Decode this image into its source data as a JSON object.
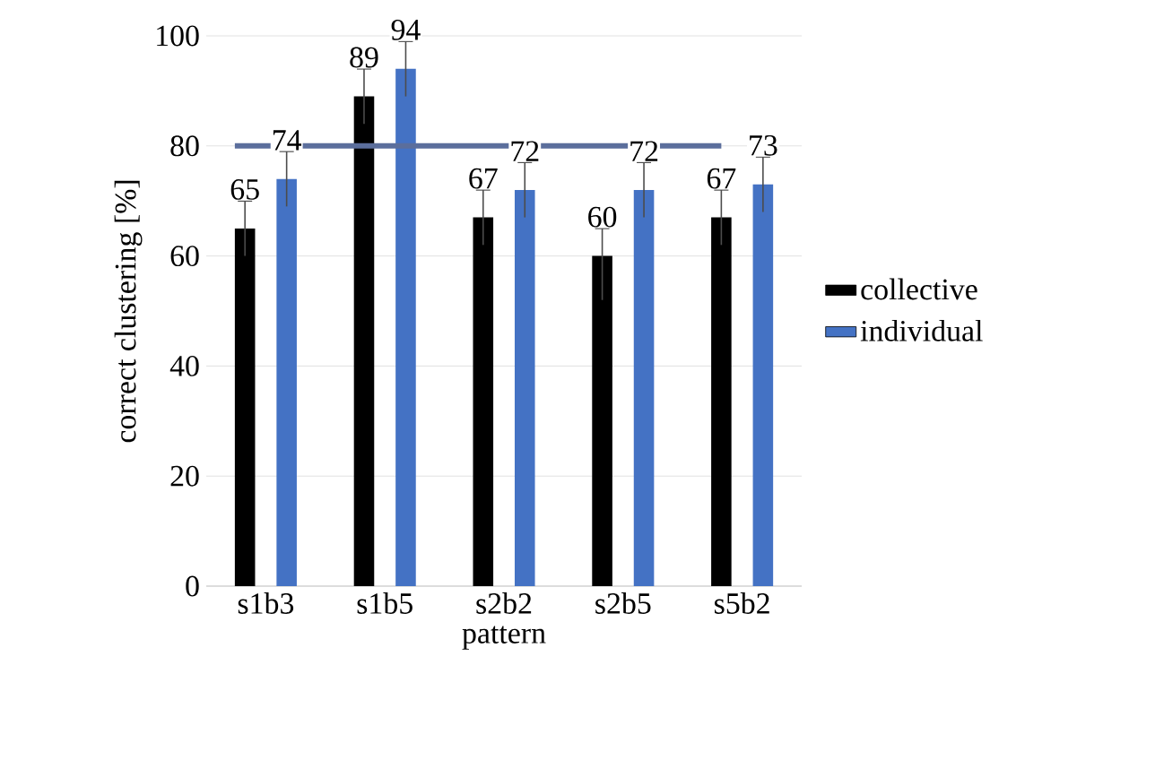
{
  "chart_data": {
    "type": "bar",
    "xlabel": "pattern",
    "ylabel": "correct clustering [%]",
    "categories": [
      "s1b3",
      "s1b5",
      "s2b2",
      "s2b5",
      "s5b2"
    ],
    "series": [
      {
        "name": "collective",
        "color": "#000000",
        "values": [
          65,
          89,
          67,
          60,
          67
        ],
        "errors": [
          5,
          5,
          5,
          [
            52,
            65
          ],
          5
        ]
      },
      {
        "name": "individual",
        "color": "#4472c4",
        "values": [
          74,
          94,
          72,
          72,
          73
        ],
        "errors": [
          5,
          5,
          5,
          5,
          5
        ]
      }
    ],
    "ylim": [
      0,
      100
    ],
    "yticks": [
      0,
      20,
      40,
      60,
      80,
      100
    ],
    "grid": "y",
    "legend": "right",
    "data_labels": true,
    "ref_lines": [
      {
        "axis": "y",
        "value": 80,
        "color": "#5b6e9c"
      }
    ]
  }
}
